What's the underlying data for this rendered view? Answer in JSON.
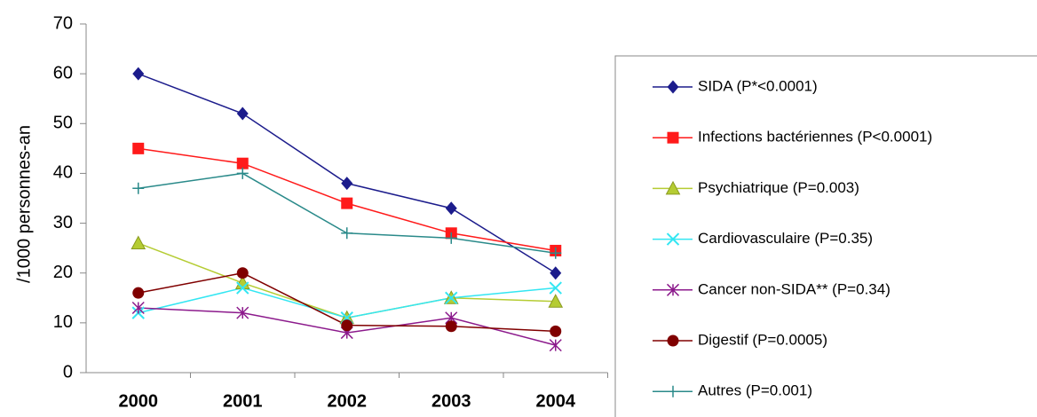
{
  "chart_data": {
    "type": "line",
    "ylabel": "/1000 personnes-an",
    "categories": [
      "2000",
      "2001",
      "2002",
      "2003",
      "2004"
    ],
    "ylim": [
      0,
      70
    ],
    "yticks": [
      0,
      10,
      20,
      30,
      40,
      50,
      60,
      70
    ],
    "grid": false,
    "legend": "right",
    "series": [
      {
        "name": "SIDA (P*<0.0001)",
        "color": "#1c1c8c",
        "marker": "diamond",
        "values": [
          60,
          52,
          38,
          33,
          20
        ]
      },
      {
        "name": "Infections bactériennes (P<0.0001)",
        "color": "#ff1a1a",
        "marker": "square",
        "values": [
          45,
          42,
          34,
          28,
          24.5
        ]
      },
      {
        "name": "Psychiatrique (P=0.003)",
        "color": "#b5cc33",
        "marker": "triangle",
        "values": [
          26,
          18,
          11,
          15,
          14.3
        ]
      },
      {
        "name": "Cardiovasculaire (P=0.35)",
        "color": "#33e6f2",
        "marker": "x",
        "values": [
          12,
          17,
          11,
          15,
          17
        ]
      },
      {
        "name": "Cancer non-SIDA** (P=0.34)",
        "color": "#8c1a8c",
        "marker": "asterisk",
        "values": [
          13,
          12,
          8,
          11,
          5.5
        ]
      },
      {
        "name": "Digestif (P=0.0005)",
        "color": "#800000",
        "marker": "circle",
        "values": [
          16,
          20,
          9.5,
          9.3,
          8.3
        ]
      },
      {
        "name": "Autres (P=0.001)",
        "color": "#2a8a8a",
        "marker": "plus",
        "values": [
          37,
          40,
          28,
          27,
          24
        ]
      }
    ]
  }
}
